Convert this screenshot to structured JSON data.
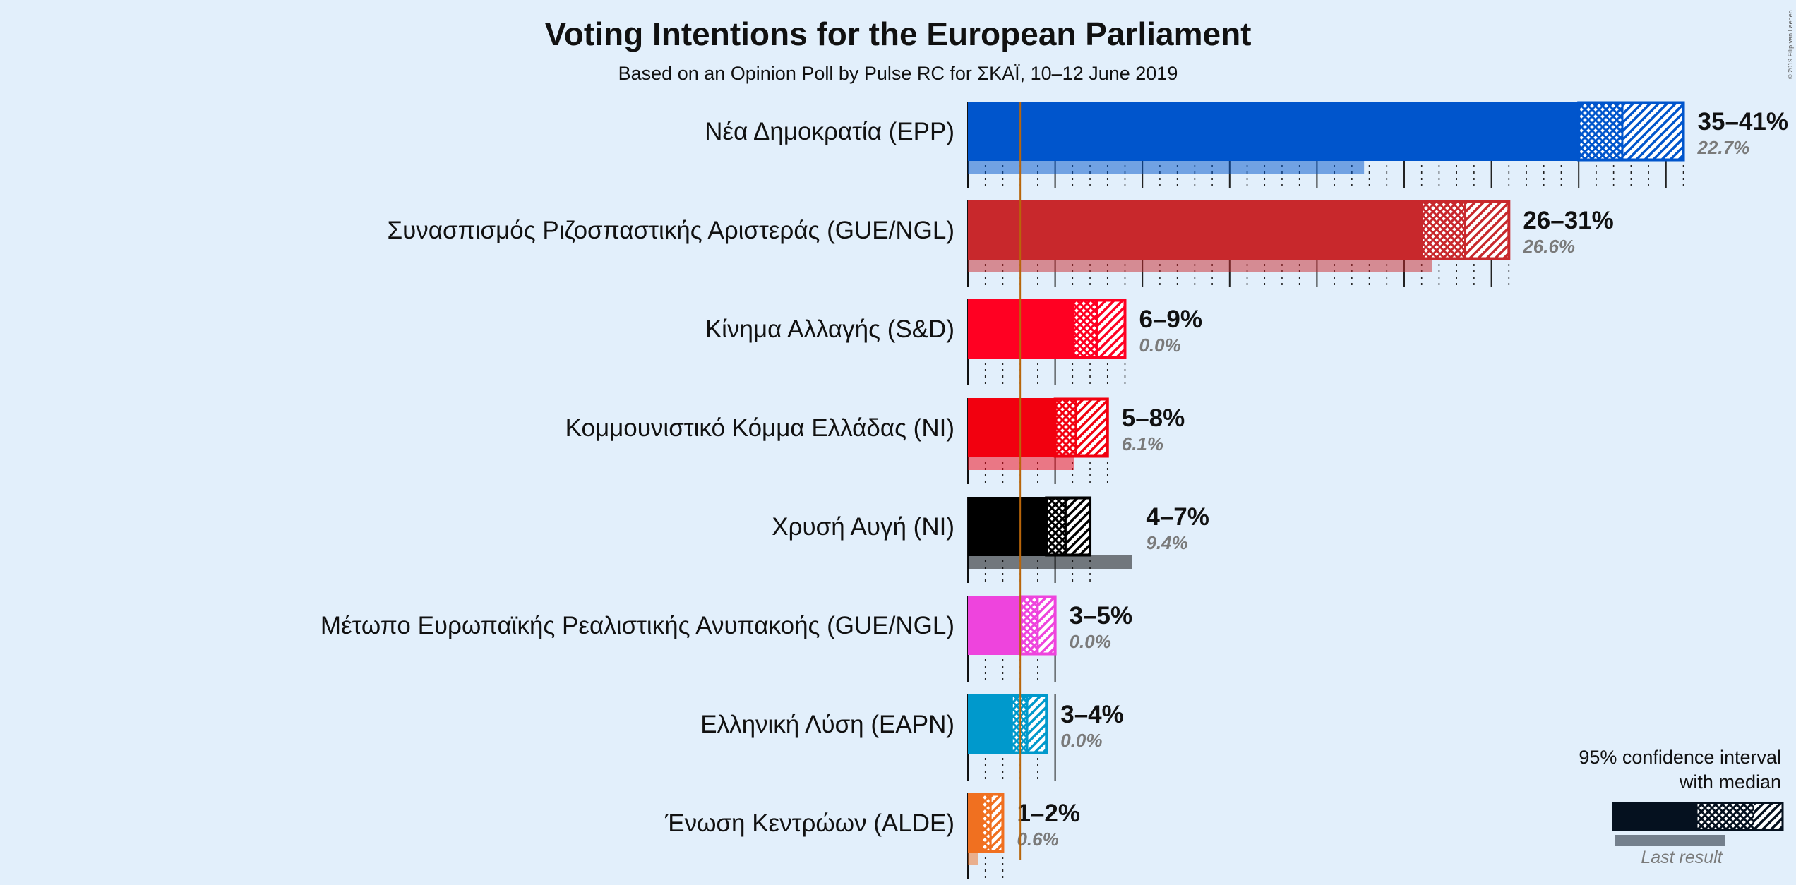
{
  "chart_data": {
    "type": "bar",
    "title": "Voting Intentions for the European Parliament",
    "subtitle": "Based on an Opinion Poll by Pulse RC for ΣΚΑΪ, 10–12 June 2019",
    "copyright": "© 2019 Filip van Laenen",
    "threshold": 3,
    "series": [
      {
        "party": "Νέα Δημοκρατία (EPP)",
        "color": "#0055cc",
        "low": 35,
        "median": 37.5,
        "high": 41,
        "last": 22.7,
        "range_label": "35–41%",
        "last_label": "22.7%"
      },
      {
        "party": "Συνασπισμός Ριζοσπαστικής Αριστεράς (GUE/NGL)",
        "color": "#c8282c",
        "low": 26,
        "median": 28.5,
        "high": 31,
        "last": 26.6,
        "range_label": "26–31%",
        "last_label": "26.6%"
      },
      {
        "party": "Κίνημα Αλλαγής (S&D)",
        "color": "#ff0022",
        "low": 6,
        "median": 7.4,
        "high": 9,
        "last": 0.0,
        "range_label": "6–9%",
        "last_label": "0.0%"
      },
      {
        "party": "Κομμουνιστικό Κόμμα Ελλάδας (NI)",
        "color": "#f2000f",
        "low": 5,
        "median": 6.2,
        "high": 8,
        "last": 6.1,
        "range_label": "5–8%",
        "last_label": "6.1%"
      },
      {
        "party": "Χρυσή Αυγή (NI)",
        "color": "#000000",
        "low": 4.5,
        "median": 5.6,
        "high": 7,
        "last": 9.4,
        "range_label": "4–7%",
        "last_label": "9.4%"
      },
      {
        "party": "Μέτωπο Ευρωπαϊκής Ρεαλιστικής Ανυπακοής (GUE/NGL)",
        "color": "#ee44dd",
        "low": 3,
        "median": 4,
        "high": 5,
        "last": 0.0,
        "range_label": "3–5%",
        "last_label": "0.0%"
      },
      {
        "party": "Ελληνική Λύση (EAPN)",
        "color": "#0099cc",
        "low": 2.5,
        "median": 3.4,
        "high": 4.5,
        "last": 0.0,
        "range_label": "3–4%",
        "last_label": "0.0%"
      },
      {
        "party": "Ένωση Κεντρώων (ALDE)",
        "color": "#f07020",
        "low": 0.8,
        "median": 1.3,
        "high": 2,
        "last": 0.6,
        "range_label": "1–2%",
        "last_label": "0.6%"
      }
    ],
    "legend": {
      "line1": "95% confidence interval",
      "line2": "with median",
      "last_result": "Last result",
      "color": "#05111f"
    }
  }
}
